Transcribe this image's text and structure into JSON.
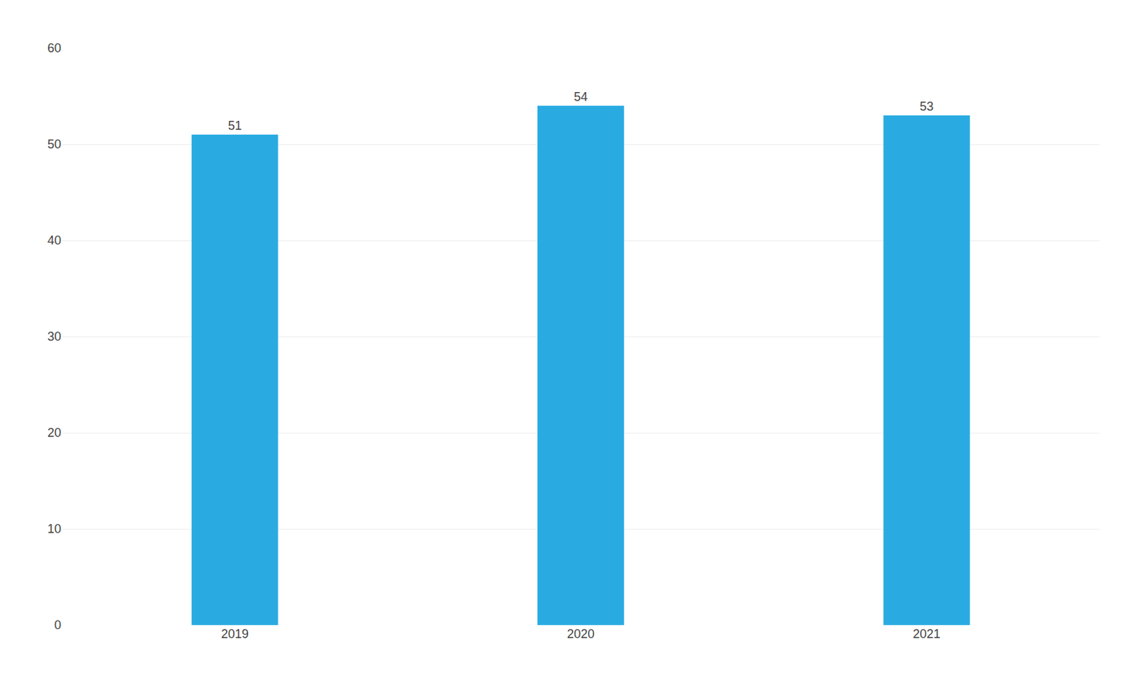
{
  "chart_data": {
    "type": "bar",
    "categories": [
      "2019",
      "2020",
      "2021"
    ],
    "values": [
      51,
      54,
      53
    ],
    "color": "#29ABE2",
    "ylim": [
      0,
      60
    ],
    "yticks": [
      0,
      10,
      20,
      30,
      40,
      50,
      60
    ],
    "grid": true,
    "data_labels": true
  }
}
